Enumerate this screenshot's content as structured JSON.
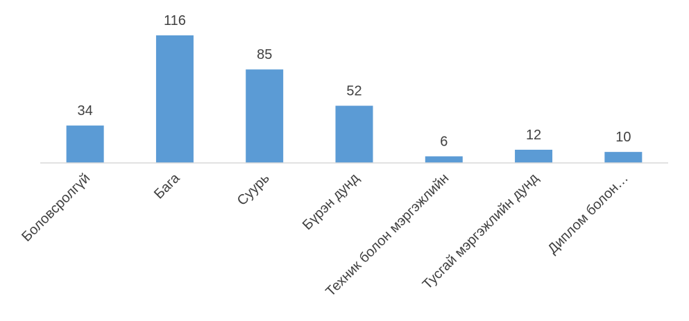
{
  "chart_data": {
    "type": "bar",
    "categories": [
      "Боловсролгүй",
      "Бага",
      "Суурь",
      "Бүрэн дунд",
      "Техник болон мэргэжлийн",
      "Тусгай мэргэжлийн дунд",
      "Диплом болон…"
    ],
    "values": [
      34,
      116,
      85,
      52,
      6,
      12,
      10
    ],
    "data_labels": [
      "34",
      "116",
      "85",
      "52",
      "6",
      "12",
      "10"
    ],
    "ylim": [
      0,
      116
    ],
    "grid": false,
    "legend": "none",
    "colors": {
      "bar": "#5b9bd5",
      "axis": "#d9d9d9",
      "text": "#404040"
    }
  }
}
